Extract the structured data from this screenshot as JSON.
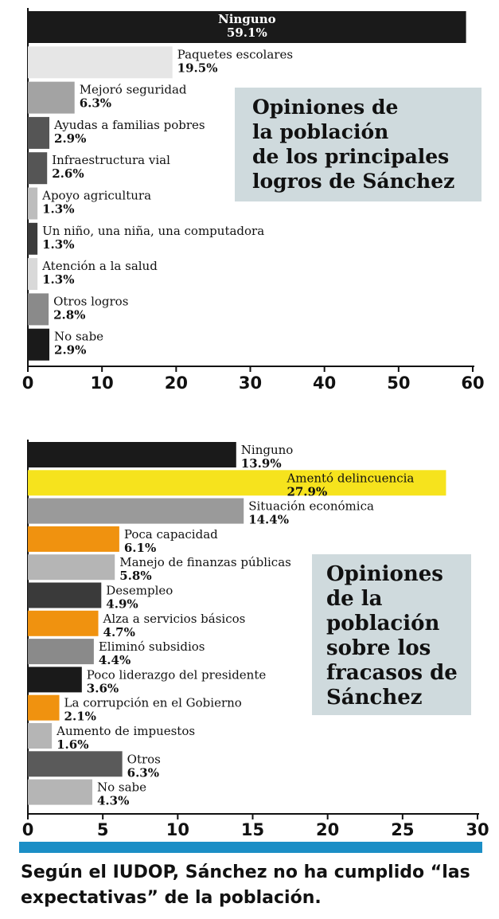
{
  "chart_data": [
    {
      "type": "bar",
      "orientation": "horizontal",
      "title_lines": [
        "Opiniones de",
        "la población",
        "de los principales",
        "logros de Sánchez"
      ],
      "xlim": [
        0,
        60
      ],
      "ticks": [
        "0",
        "10",
        "20",
        "30",
        "40",
        "50",
        "60"
      ],
      "categories": [
        "Ninguno",
        "Paquetes escolares",
        "Mejoró seguridad",
        "Ayudas a familias pobres",
        "Infraestructura vial",
        "Apoyo agricultura",
        "Un niño, una niña, una computadora",
        "Atención a la salud",
        "Otros logros",
        "No sabe"
      ],
      "values": [
        59.1,
        19.5,
        6.3,
        2.9,
        2.6,
        1.3,
        1.3,
        1.3,
        2.8,
        2.9
      ],
      "value_labels": [
        "59.1%",
        "19.5%",
        "6.3%",
        "2.9%",
        "2.6%",
        "1.3%",
        "1.3%",
        "1.3%",
        "2.8%",
        "2.9%"
      ],
      "colors": [
        "#1a1a1a",
        "#e6e6e6",
        "#a3a3a3",
        "#555555",
        "#555555",
        "#bdbdbd",
        "#3c3c3c",
        "#d9d9d9",
        "#8a8a8a",
        "#1a1a1a"
      ]
    },
    {
      "type": "bar",
      "orientation": "horizontal",
      "title_lines": [
        "Opiniones",
        "de la",
        "población",
        "sobre los",
        "fracasos de",
        "Sánchez"
      ],
      "xlim": [
        0,
        30
      ],
      "ticks": [
        "0",
        "5",
        "10",
        "15",
        "20",
        "25",
        "30"
      ],
      "categories": [
        "Ninguno",
        "Amentó delincuencia",
        "Situación económica",
        "Poca capacidad",
        "Manejo de finanzas públicas",
        "Desempleo",
        "Alza a servicios básicos",
        "Eliminó subsidios",
        "Poco liderazgo del presidente",
        "La corrupción en el Gobierno",
        "Aumento de impuestos",
        "Otros",
        "No sabe"
      ],
      "values": [
        13.9,
        27.9,
        14.4,
        6.1,
        5.8,
        4.9,
        4.7,
        4.4,
        3.6,
        2.1,
        1.6,
        6.3,
        4.3
      ],
      "value_labels": [
        "13.9%",
        "27.9%",
        "14.4%",
        "6.1%",
        "5.8%",
        "4.9%",
        "4.7%",
        "4.4%",
        "3.6%",
        "2.1%",
        "1.6%",
        "6.3%",
        "4.3%"
      ],
      "colors": [
        "#1a1a1a",
        "#f6e31d",
        "#9a9a9a",
        "#f0920f",
        "#b5b5b5",
        "#3a3a3a",
        "#f0920f",
        "#8a8a8a",
        "#1a1a1a",
        "#f0920f",
        "#b5b5b5",
        "#5a5a5a",
        "#b5b5b5"
      ]
    }
  ],
  "caption": "Según el IUDOP, Sánchez no ha cumplido “las expectativas” de la población."
}
